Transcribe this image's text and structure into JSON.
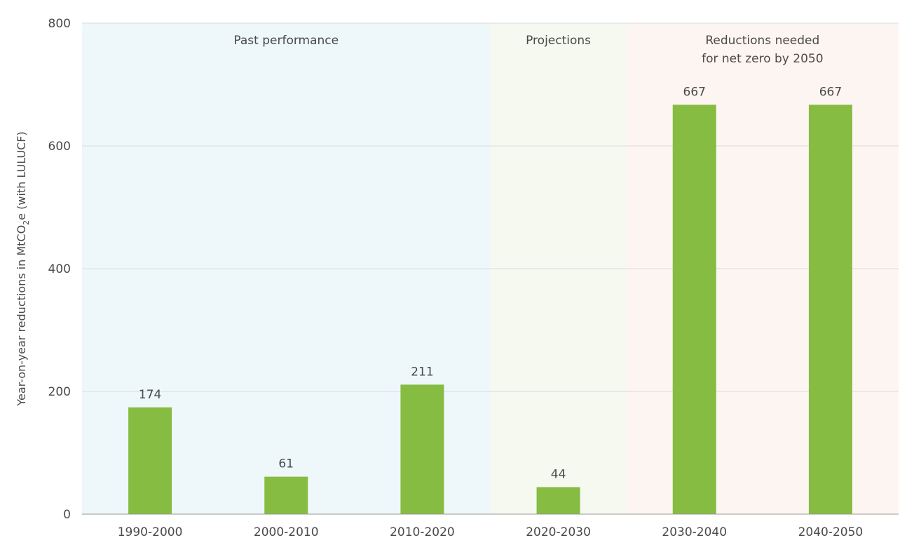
{
  "chart_data": {
    "type": "bar",
    "categories": [
      "1990-2000",
      "2000-2010",
      "2010-2020",
      "2020-2030",
      "2030-2040",
      "2040-2050"
    ],
    "values": [
      174,
      61,
      211,
      44,
      667,
      667
    ],
    "value_labels": [
      "174",
      "61",
      "211",
      "44",
      "667",
      "667"
    ],
    "ylabel": {
      "main": "Year-on-year reductions in MtCO",
      "sub": "2",
      "tail": "e (with LULUCF)"
    },
    "ylim": [
      0,
      800
    ],
    "yticks": [
      0,
      200,
      400,
      600,
      800
    ],
    "ytick_labels": [
      "0",
      "200",
      "400",
      "600",
      "800"
    ],
    "grid": true,
    "bar_color": "#86bc41",
    "bands": [
      {
        "label_lines": [
          "Past performance"
        ],
        "from_index": 0,
        "to_index": 2,
        "color": "#eef7fa"
      },
      {
        "label_lines": [
          "Projections"
        ],
        "from_index": 3,
        "to_index": 3,
        "color": "#f5f9f0"
      },
      {
        "label_lines": [
          "Reductions needed",
          "for net zero by 2050"
        ],
        "from_index": 4,
        "to_index": 5,
        "color": "#fdf5f1"
      }
    ]
  }
}
